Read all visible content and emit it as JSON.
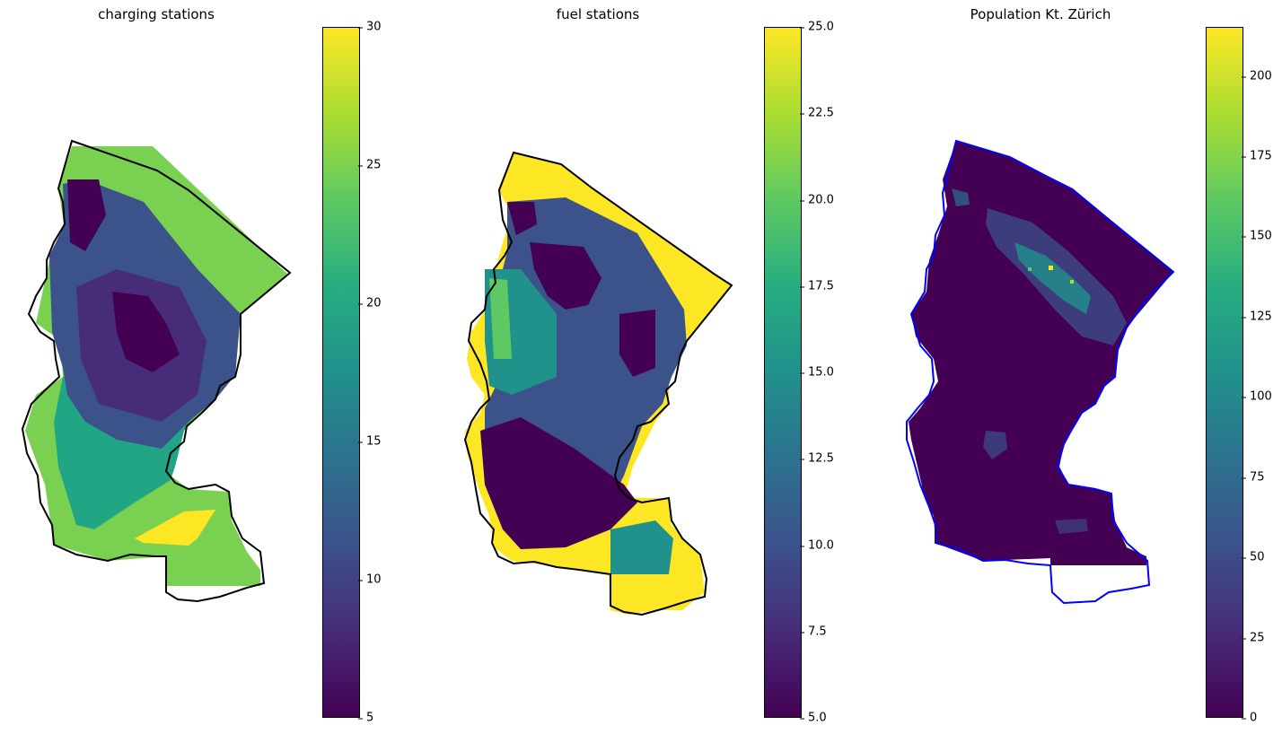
{
  "colormap": "viridis",
  "colors": {
    "viridis_low": "#440154",
    "viridis_high": "#fde725",
    "outline_1": "#000000",
    "outline_2": "#000000",
    "outline_3": "#0000ff"
  },
  "panels": [
    {
      "title": "charging stations",
      "colorbar": {
        "min": 5,
        "max": 30,
        "ticks": [
          "5",
          "10",
          "15",
          "20",
          "25",
          "30"
        ]
      }
    },
    {
      "title": "fuel stations",
      "colorbar": {
        "min": 5.0,
        "max": 25.0,
        "ticks": [
          "5.0",
          "7.5",
          "10.0",
          "12.5",
          "15.0",
          "17.5",
          "20.0",
          "22.5",
          "25.0"
        ]
      }
    },
    {
      "title": "Population Kt. Zürich",
      "colorbar": {
        "min": 0,
        "max": 215,
        "ticks": [
          "0",
          "25",
          "50",
          "75",
          "100",
          "125",
          "150",
          "175",
          "200"
        ]
      }
    }
  ]
}
